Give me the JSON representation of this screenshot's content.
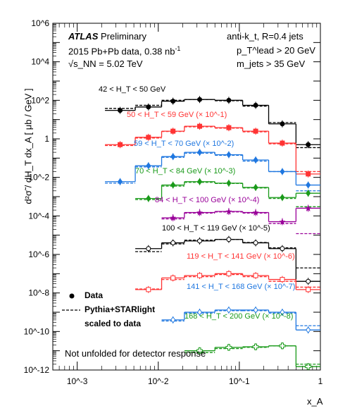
{
  "chart_data": {
    "type": "scatter",
    "xscale": "log",
    "yscale": "log",
    "xlim": [
      0.0005,
      1
    ],
    "ylim": [
      1e-12,
      1000000.0
    ],
    "xlabel": "x_A",
    "ylabel": "d²σ̃ / dH_T dx_A [ μb / GeV ]",
    "ytick_labels": [
      "10^-12",
      "10^-10",
      "10^-8",
      "10^-6",
      "10^-4",
      "10^-2",
      "1",
      "10^2",
      "10^4",
      "10^6"
    ],
    "xtick_labels": [
      "10^-3",
      "10^-2",
      "10^-1",
      "1"
    ],
    "atlas_label": "ATLAS",
    "preliminary_label": "Preliminary",
    "dataset_label": "2015 Pb+Pb data, 0.38 nb",
    "lumi_exponent": "-1",
    "energy_label": "√s_NN = 5.02 TeV",
    "jet_label": "anti-k_t, R=0.4 jets",
    "cut1": "p_T^lead > 20 GeV",
    "cut2": "m_jets > 35 GeV",
    "legend": [
      "Data",
      "Pythia+STARlight",
      "scaled to data"
    ],
    "note": "Not unfolded for detector response",
    "bin_edges": [
      0.0022,
      0.0052,
      0.011,
      0.021,
      0.05,
      0.11,
      0.23,
      0.5,
      1.0
    ],
    "series": [
      {
        "name": "42 < H_T < 50 GeV",
        "color": "#000000",
        "marker": "circle",
        "values": [
          30,
          45,
          90,
          110,
          100,
          55,
          6,
          0.5
        ],
        "mc": [
          38,
          55,
          100,
          110,
          95,
          50,
          7,
          0.35
        ]
      },
      {
        "name": "50 < H_T < 59 GeV (× 10^-1)",
        "color": "#ff3333",
        "marker": "square",
        "values": [
          0.5,
          1.2,
          2.5,
          4.5,
          3.8,
          2.5,
          0.6,
          0.015
        ],
        "mc": [
          0.45,
          1.1,
          2.4,
          4.2,
          3.6,
          2.3,
          0.55,
          0.02
        ]
      },
      {
        "name": "59 < H_T < 70 GeV (× 10^-2)",
        "color": "#1f77e0",
        "marker": "diamond",
        "values": [
          0.006,
          0.04,
          0.12,
          0.2,
          0.15,
          0.08,
          0.02,
          0.004
        ],
        "mc": [
          0.005,
          0.035,
          0.11,
          0.18,
          0.14,
          0.07,
          0.02,
          0.002
        ]
      },
      {
        "name": "70 < H_T < 84 GeV (× 10^-3)",
        "color": "#1a9a1a",
        "marker": "diamond",
        "values": [
          null,
          0.0008,
          0.004,
          0.006,
          0.005,
          0.003,
          0.0009,
          0.0015
        ],
        "mc": [
          null,
          0.0007,
          0.0035,
          0.0055,
          0.0048,
          0.0028,
          0.0008,
          0.0003
        ]
      },
      {
        "name": "84 < H_T < 100 GeV (× 10^-4)",
        "color": "#990099",
        "marker": "star",
        "values": [
          null,
          null,
          8e-05,
          0.00015,
          0.00017,
          0.00015,
          5e-05,
          0.00025
        ],
        "mc": [
          null,
          null,
          7e-05,
          0.00014,
          0.00016,
          0.00014,
          4e-05,
          1.2e-05
        ]
      },
      {
        "name": "100 < H_T < 119 GeV (× 10^-5)",
        "color": "#000000",
        "marker": "open-circle",
        "values": [
          null,
          2e-06,
          4e-06,
          5e-06,
          6e-06,
          4e-06,
          2e-06,
          4e-08
        ],
        "mc": [
          null,
          1.4e-06,
          3.5e-06,
          5.5e-06,
          6e-06,
          4.2e-06,
          2.2e-06,
          2e-07
        ]
      },
      {
        "name": "119 < H_T < 141 GeV (× 10^-6)",
        "color": "#ff3333",
        "marker": "open-square",
        "values": [
          null,
          1.5e-08,
          6e-08,
          8e-08,
          1e-07,
          8e-08,
          5e-08,
          1.5e-08
        ],
        "mc": [
          null,
          1.6e-08,
          5e-08,
          7e-08,
          9e-08,
          7e-08,
          4e-08,
          2e-08
        ]
      },
      {
        "name": "141 < H_T < 168 GeV (× 10^-7)",
        "color": "#1f77e0",
        "marker": "open-diamond",
        "values": [
          null,
          null,
          4e-10,
          1e-09,
          1.3e-09,
          1.3e-09,
          1e-09,
          1.2e-10
        ],
        "mc": [
          null,
          null,
          3.5e-10,
          9e-10,
          1.2e-09,
          1.2e-09,
          9e-10,
          2e-10
        ]
      },
      {
        "name": "168 < H_T < 200 GeV (× 10^-8)",
        "color": "#1a9a1a",
        "marker": "open-cross",
        "values": [
          null,
          null,
          null,
          1e-11,
          1.5e-11,
          1.6e-11,
          1.8e-11,
          1.5e-12
        ],
        "mc": [
          null,
          null,
          null,
          8e-12,
          1.3e-11,
          1.5e-11,
          1.8e-11,
          2e-12
        ]
      }
    ]
  }
}
